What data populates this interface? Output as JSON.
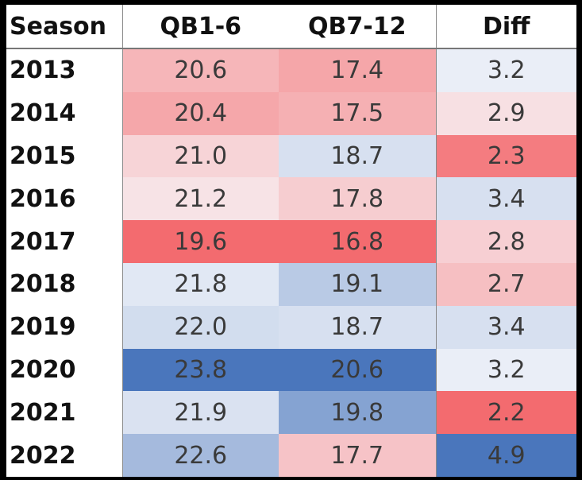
{
  "chart_data": {
    "type": "table",
    "columns": [
      "Season",
      "QB1-6",
      "QB7-12",
      "Diff"
    ],
    "rows": [
      {
        "season": "2013",
        "qb1_6": "20.6",
        "qb7_12": "17.4",
        "diff": "3.2"
      },
      {
        "season": "2014",
        "qb1_6": "20.4",
        "qb7_12": "17.5",
        "diff": "2.9"
      },
      {
        "season": "2015",
        "qb1_6": "21.0",
        "qb7_12": "18.7",
        "diff": "2.3"
      },
      {
        "season": "2016",
        "qb1_6": "21.2",
        "qb7_12": "17.8",
        "diff": "3.4"
      },
      {
        "season": "2017",
        "qb1_6": "19.6",
        "qb7_12": "16.8",
        "diff": "2.8"
      },
      {
        "season": "2018",
        "qb1_6": "21.8",
        "qb7_12": "19.1",
        "diff": "2.7"
      },
      {
        "season": "2019",
        "qb1_6": "22.0",
        "qb7_12": "18.7",
        "diff": "3.4"
      },
      {
        "season": "2020",
        "qb1_6": "23.8",
        "qb7_12": "20.6",
        "diff": "3.2"
      },
      {
        "season": "2021",
        "qb1_6": "21.9",
        "qb7_12": "19.8",
        "diff": "2.2"
      },
      {
        "season": "2022",
        "qb1_6": "22.6",
        "qb7_12": "17.7",
        "diff": "4.9"
      }
    ],
    "color_scale": {
      "low": "#f36b6f",
      "mid": "#f8f9fc",
      "high": "#4a76bc"
    }
  }
}
